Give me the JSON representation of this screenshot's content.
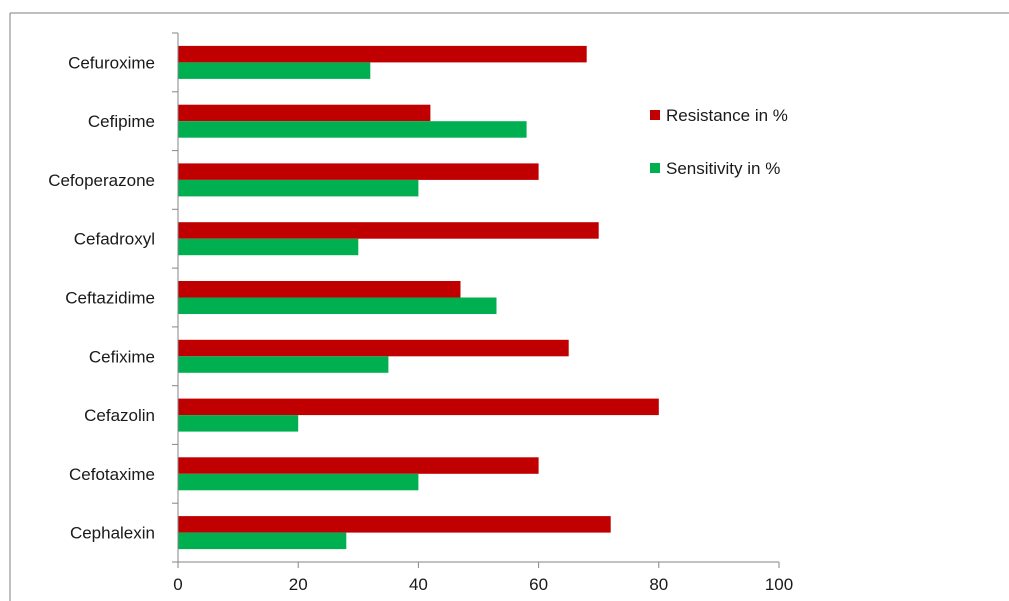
{
  "chart_data": {
    "type": "bar",
    "orientation": "horizontal",
    "categories": [
      "Cefuroxime",
      "Cefipime",
      "Cefoperazone",
      "Cefadroxyl",
      "Ceftazidime",
      "Cefixime",
      "Cefazolin",
      "Cefotaxime",
      "Cephalexin"
    ],
    "series": [
      {
        "name": "Resistance in %",
        "color": "#c00000",
        "values": [
          68,
          42,
          60,
          70,
          47,
          65,
          80,
          60,
          72
        ]
      },
      {
        "name": "Sensitivity in %",
        "color": "#00b050",
        "values": [
          32,
          58,
          40,
          30,
          53,
          35,
          20,
          40,
          28
        ]
      }
    ],
    "xlim": [
      0,
      100
    ],
    "x_ticks": [
      "0",
      "20",
      "40",
      "60",
      "80",
      "100"
    ],
    "grid": false,
    "legend_position": "right"
  }
}
